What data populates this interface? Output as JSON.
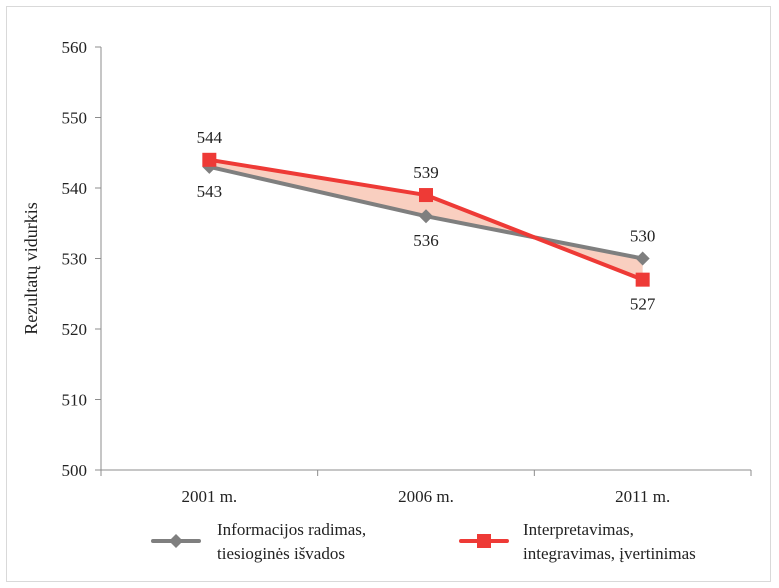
{
  "chart_data": {
    "type": "line",
    "categories": [
      "2001 m.",
      "2006 m.",
      "2011 m."
    ],
    "ylabel": "Rezultatų vidurkis",
    "ylim": [
      500,
      560
    ],
    "yticks": [
      500,
      510,
      520,
      530,
      540,
      550,
      560
    ],
    "grid": false,
    "legend_position": "bottom",
    "fill_between_series": true,
    "series": [
      {
        "name_lines": [
          "Informacijos radimas,",
          "tiesioginės išvados"
        ],
        "values": [
          543,
          536,
          530
        ],
        "color": "#7f7f7f",
        "marker": "diamond",
        "label_position": [
          "below",
          "below",
          "above"
        ]
      },
      {
        "name_lines": [
          "Interpretavimas,",
          "integravimas, įvertinimas"
        ],
        "values": [
          544,
          539,
          527
        ],
        "color": "#ee3a36",
        "marker": "square",
        "label_position": [
          "above",
          "above",
          "below"
        ]
      }
    ],
    "fill_color": "#f9cfc0"
  }
}
